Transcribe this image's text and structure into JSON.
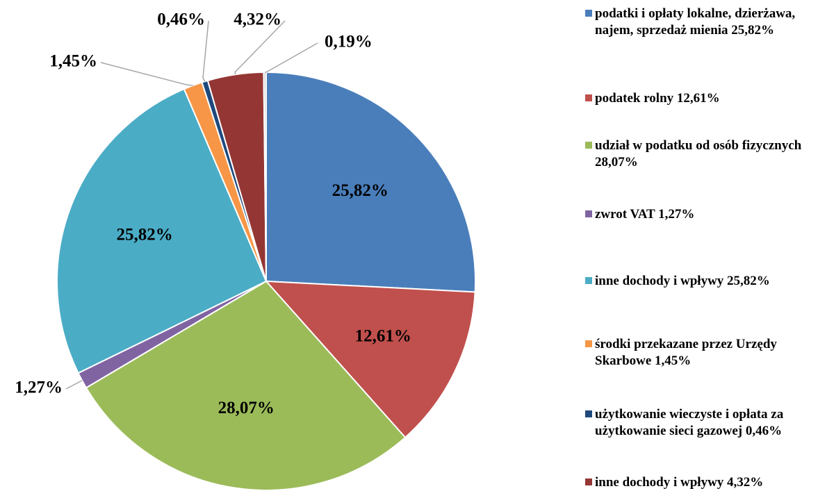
{
  "chart_data": {
    "type": "pie",
    "categories": [
      "podatki i opłaty lokalne, dzierżawa, najem, sprzedaż mienia 25,82%",
      "podatek rolny 12,61%",
      "udział w podatku od osób fizycznych 28,07%",
      "zwrot VAT 1,27%",
      "inne dochody i wpływy 25,82%",
      "środki przekazane przez Urzędy Skarbowe 1,45%",
      "użytkowanie wieczyste i opłata za użytkowanie sieci gazowej 0,46%",
      "inne dochody i wpływy 4,32%",
      null
    ],
    "values": [
      25.82,
      12.61,
      28.07,
      1.27,
      25.82,
      1.45,
      0.46,
      4.32,
      0.19
    ],
    "value_labels": [
      "25,82%",
      "12,61%",
      "28,07%",
      "1,27%",
      "25,82%",
      "1,45%",
      "0,46%",
      "4,32%",
      "0,19%"
    ],
    "colors": [
      "#4a7ebb",
      "#c0504d",
      "#9bbb59",
      "#8064a2",
      "#4bacc6",
      "#f79646",
      "#1f497d",
      "#943634",
      "#d0d0d0"
    ]
  }
}
